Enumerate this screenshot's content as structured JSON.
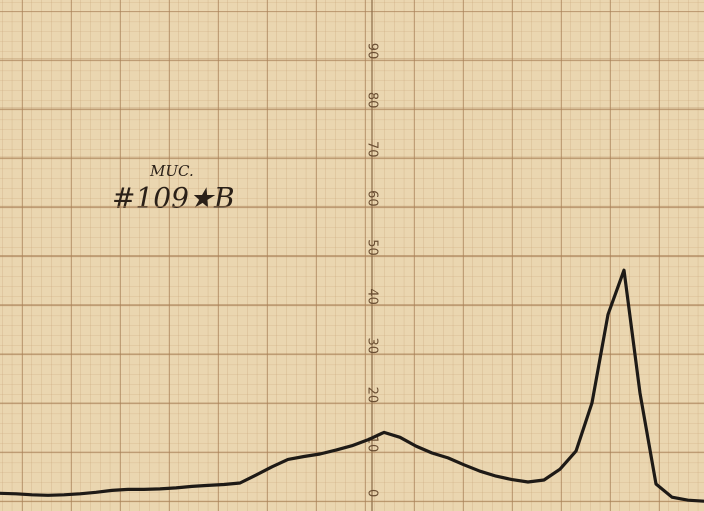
{
  "chart_data": {
    "type": "line",
    "annotations": [
      "MUC.",
      "#109★B"
    ],
    "categories": [
      null,
      null,
      null,
      null,
      null,
      null,
      null,
      null,
      null,
      null,
      null,
      null,
      null,
      null,
      null,
      null,
      null,
      null,
      null,
      null,
      null,
      null,
      null,
      null,
      null,
      null,
      null,
      null,
      null,
      null,
      null,
      null,
      null,
      null,
      null,
      null,
      null,
      null,
      null,
      null,
      null,
      null,
      null,
      null,
      null
    ],
    "series": [
      {
        "color": "#1e1a16",
        "values": [
          1.6,
          1.5,
          1.3,
          1.2,
          1.3,
          1.5,
          1.8,
          2.2,
          2.4,
          2.4,
          2.5,
          2.7,
          3,
          3.2,
          3.4,
          3.7,
          5.3,
          7,
          8.5,
          9.1,
          9.6,
          10.4,
          11.3,
          12.5,
          14,
          13,
          11.2,
          9.8,
          8.8,
          7.4,
          6.1,
          5.1,
          4.4,
          3.9,
          4.3,
          6.5,
          10.2,
          20,
          38,
          47,
          22,
          3.5,
          0.8,
          0.2,
          0
        ]
      }
    ],
    "ylim": [
      -2,
      102
    ],
    "yticks": [
      0,
      10,
      20,
      30,
      40,
      50,
      60,
      70,
      80,
      90
    ],
    "grid": true
  }
}
